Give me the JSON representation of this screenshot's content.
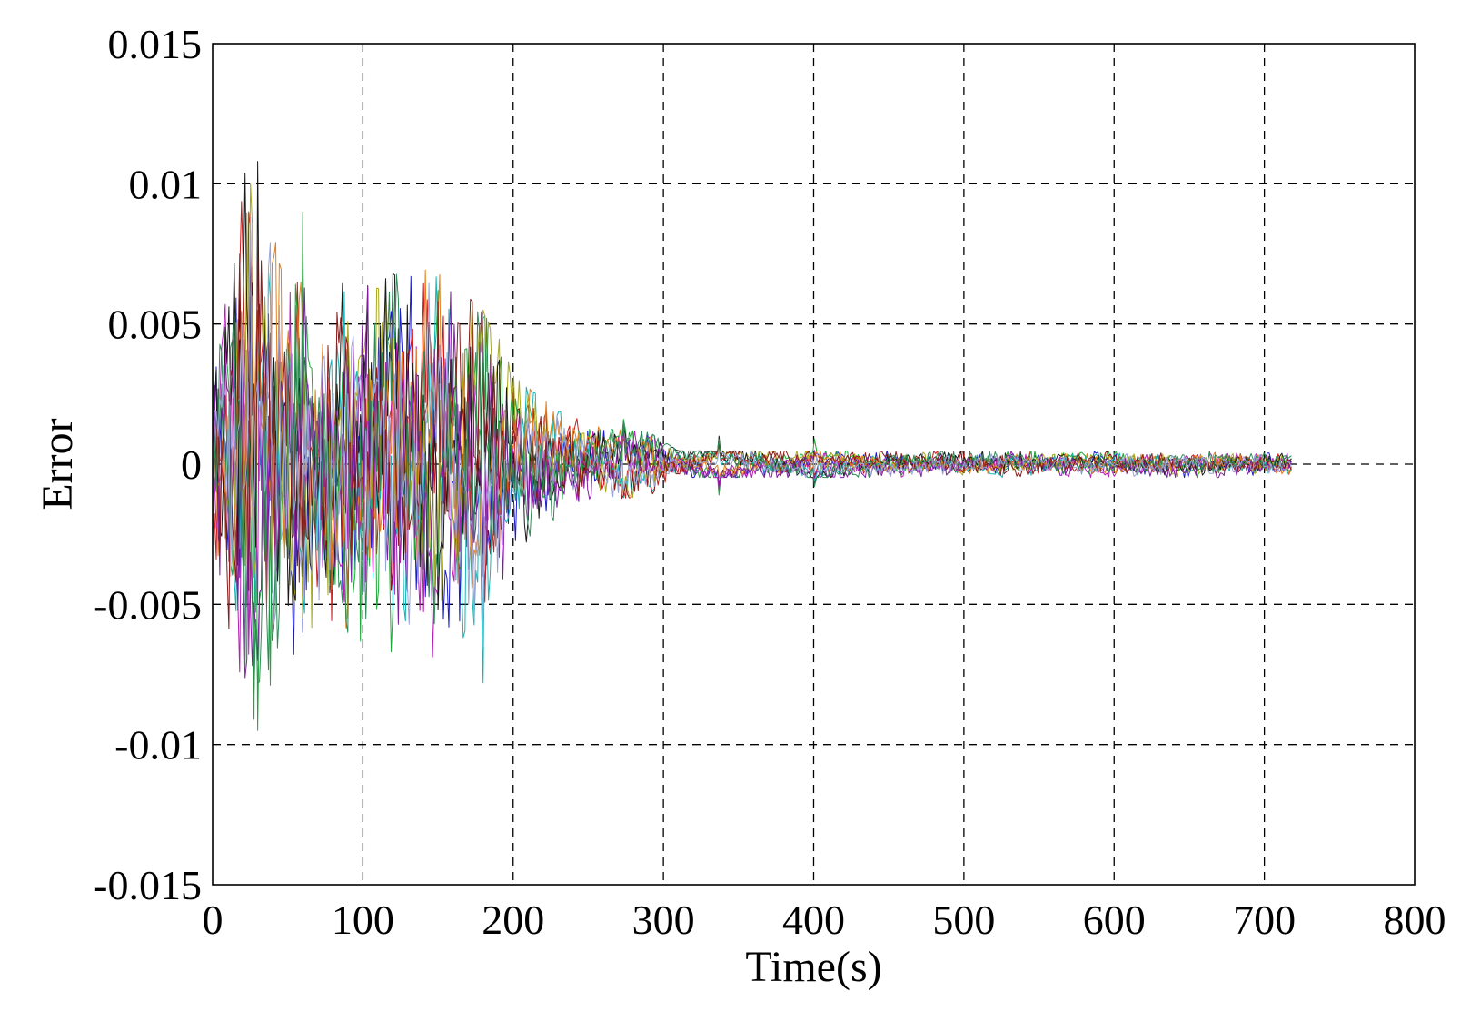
{
  "chart_data": {
    "type": "line",
    "title": "",
    "xlabel": "Time(s)",
    "ylabel": "Error",
    "xlim": [
      0,
      800
    ],
    "ylim": [
      -0.015,
      0.015
    ],
    "x_ticks": [
      0,
      100,
      200,
      300,
      400,
      500,
      600,
      700,
      800
    ],
    "x_tick_labels": [
      "0",
      "100",
      "200",
      "300",
      "400",
      "500",
      "600",
      "700",
      "800"
    ],
    "y_ticks": [
      0.015,
      0.01,
      0.005,
      0,
      -0.005,
      -0.01,
      -0.015
    ],
    "y_tick_labels": [
      "0.015",
      "0.01",
      "0.005",
      "0",
      "-0.005",
      "-0.01",
      "-0.015"
    ],
    "grid": true,
    "legend": "none",
    "data_range": [
      0,
      718
    ],
    "envelope": {
      "t": [
        0,
        25,
        50,
        100,
        140,
        165,
        190,
        200,
        230,
        260,
        290,
        310,
        718
      ],
      "amplitude": [
        0.006,
        0.0105,
        0.0065,
        0.006,
        0.0068,
        0.006,
        0.0045,
        0.003,
        0.0018,
        0.0012,
        0.0011,
        0.00045,
        0.00045
      ]
    },
    "series": [
      {
        "color": "#1b1bcc",
        "seed": 11,
        "values": [
          0.001,
          0.0035,
          -0.006,
          0.002,
          0.0048,
          -0.004,
          -0.0025,
          0.0004,
          0.0013,
          -0.0008,
          0.0003,
          0.0002,
          -0.0001,
          0.0003,
          -0.0002,
          0.0001
        ]
      },
      {
        "color": "#cc1b1b",
        "seed": 23,
        "values": [
          -0.002,
          0.0055,
          0.003,
          -0.0045,
          0.004,
          0.0035,
          -0.0035,
          0.0021,
          -0.0009,
          0.0006,
          -0.0004,
          0.0001,
          0.0003,
          -0.0002,
          0.0002,
          -0.0001
        ]
      },
      {
        "color": "#1fa83a",
        "seed": 37,
        "values": [
          0.0035,
          -0.0095,
          0.009,
          -0.0055,
          -0.0052,
          0.0062,
          0.0052,
          -0.0015,
          0.0016,
          -0.0011,
          0.0009,
          -0.0003,
          0.0002,
          0.0004,
          -0.0003,
          0.0002
        ]
      },
      {
        "color": "#12b5b5",
        "seed": 41,
        "values": [
          -0.003,
          0.0048,
          -0.0045,
          0.0038,
          -0.0052,
          0.0045,
          -0.0078,
          0.0024,
          -0.0012,
          0.0007,
          -0.0006,
          0.0002,
          -0.0002,
          0.0002,
          0.0001,
          -0.0002
        ]
      },
      {
        "color": "#b51fb5",
        "seed": 53,
        "values": [
          0.0025,
          -0.005,
          0.0052,
          -0.003,
          0.0028,
          -0.0047,
          0.003,
          -0.0018,
          0.0011,
          -0.0009,
          0.0005,
          -0.0003,
          0.0001,
          -0.0003,
          0.0002,
          0.0001
        ]
      },
      {
        "color": "#a8a81b",
        "seed": 67,
        "values": [
          -0.0015,
          0.004,
          -0.0055,
          0.0051,
          0.0045,
          -0.0038,
          0.0055,
          0.0025,
          -0.001,
          0.0008,
          0.0004,
          0.0002,
          -0.0001,
          0.0002,
          -0.0001,
          0.0002
        ]
      },
      {
        "color": "#1a1a1a",
        "seed": 79,
        "values": [
          0.002,
          0.0108,
          -0.004,
          0.0025,
          0.0068,
          -0.0052,
          0.0042,
          -0.0019,
          0.0014,
          0.001,
          -0.0007,
          0.0002,
          0.0004,
          0.0001,
          -0.0002,
          0.0002
        ]
      },
      {
        "color": "#e0801f",
        "seed": 83,
        "values": [
          -0.0025,
          0.0062,
          0.0045,
          -0.0048,
          0.003,
          0.0052,
          -0.004,
          0.0017,
          0.0009,
          -0.0005,
          0.0003,
          -0.0002,
          0.0002,
          -0.0001,
          0.0003,
          -0.0002
        ]
      },
      {
        "color": "#7f1f9e",
        "seed": 97,
        "values": [
          0.0015,
          -0.007,
          0.0032,
          0.0035,
          -0.0043,
          0.0041,
          -0.0032,
          -0.002,
          0.0012,
          -0.0007,
          -0.0005,
          -0.0003,
          0.0002,
          -0.0002,
          -0.0004,
          0.0001
        ]
      },
      {
        "color": "#8b1a1a",
        "seed": 101,
        "values": [
          -0.001,
          0.008,
          -0.0035,
          0.0042,
          -0.0038,
          0.0058,
          0.0035,
          0.0015,
          -0.0011,
          0.0007,
          0.0004,
          0.0003,
          -0.0003,
          0.0002,
          0.0001,
          -0.0002
        ]
      },
      {
        "color": "#2e8b57",
        "seed": 113,
        "values": [
          0.003,
          -0.0078,
          0.0058,
          -0.006,
          0.0062,
          -0.004,
          0.0045,
          -0.0022,
          0.0015,
          0.0009,
          -0.0008,
          0.0002,
          0.0003,
          -0.0001,
          0.0002,
          0.0003
        ]
      },
      {
        "color": "#9aa4d8",
        "seed": 127,
        "values": [
          -0.002,
          0.003,
          -0.003,
          0.0025,
          -0.0035,
          0.003,
          -0.0065,
          0.0018,
          -0.0009,
          0.0005,
          -0.0003,
          -0.0002,
          0.0002,
          -0.0001,
          0.0001,
          -0.0001
        ]
      }
    ]
  }
}
